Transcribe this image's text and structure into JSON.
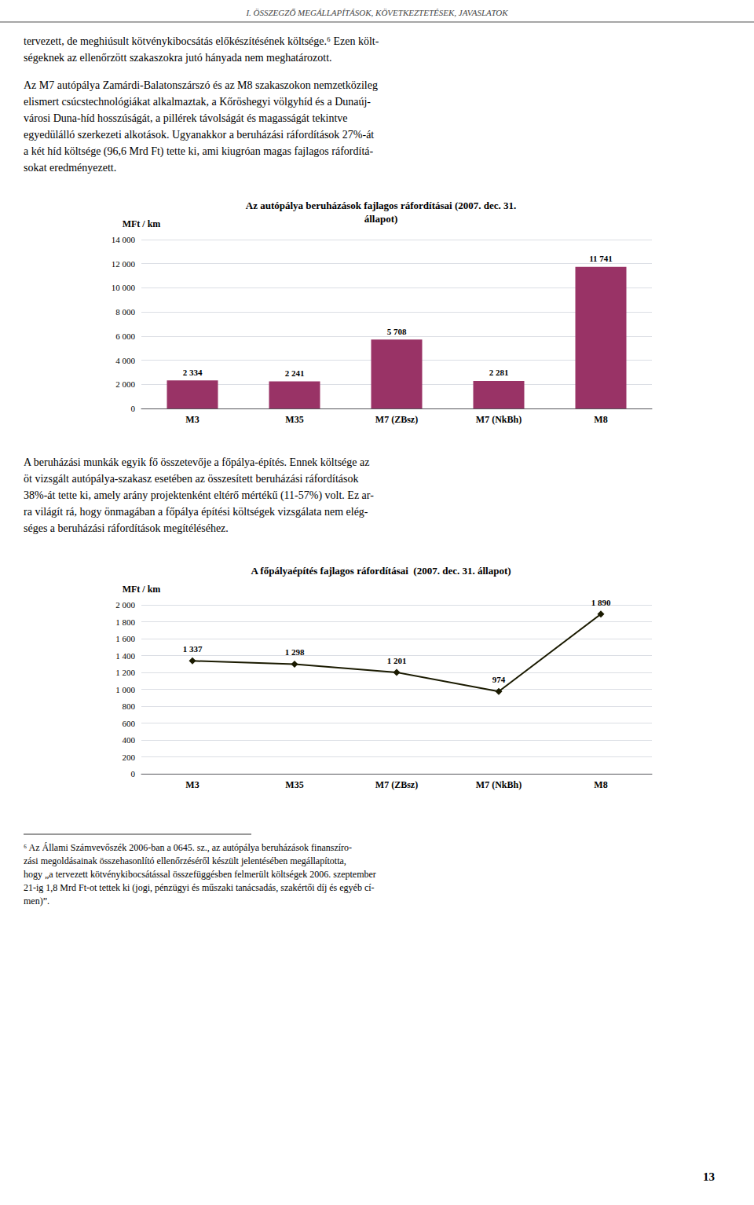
{
  "page_title": "I. ÖSSZEGZŐ MEGÁLLAPÍTÁSOK, KÖVETKEZTETÉSEK, JAVASLATOK",
  "body_text_1": "tervezett, de meghiúsult kötvénykibocsátás előkészítésének költsége.⁶ Ezen költ-\nségeknek az ellenőrzött szakaszokra jutó hányada nem meghatározott.",
  "body_text_2": "Az M7 autópálya Zamárdi-Balatonszárszó és az M8 szakaszokon nemzetközileg\nelismert csúcstechnológiákat alkalmaztak, a Kőröshegyi völgyhíd és a Dunaúj-\nvárosi Duna-híd hosszúságát, a pillérek távolságát és magasságát tekintve\negyedülálló szerkezeti alkotások. Ugyanakkor a beruházási ráfordítások 27%-át\na két híd költsége (96,6 Mrd Ft) tette ki, ami kiugróan magas fajlagos ráfordítá-\nsokat eredményezett.",
  "body_text_3": "A beruházási munkák egyik fő összetevője a főpálya-építés. Ennek költsége az\nöt vizsgált autópálya-szakasz esetében az összesített beruházási ráfordítások\n38%-át tette ki, amely arány projektenként eltérő mértékű (11-57%) volt. Ez ar-\nra világít rá, hogy önmagában a főpálya építési költségek vizsgálata nem elég-\nséges a beruházási ráfordítások megítéléséhez.",
  "footnote": [
    "⁶ Az Állami Számvevőszék 2006-ban a 0645. sz., az autópálya beruházások finanszíro-",
    "zási megoldásainak összehasonlító ellenőrzéséről készült jelentésében megállapította,",
    "hogy „a tervezett kötvénykibocsátással összefüggésben felmerült költségek 2006. szeptember",
    "21-ig 1,8 Mrd Ft-ot tettek ki (jogi, pénzügyi és műszaki tanácsadás, szakértői díj és egyéb cí-",
    "men)”."
  ],
  "page_number": "13",
  "chart_data": [
    {
      "type": "bar",
      "title": "Az autópálya beruházások fajlagos ráfordításai (2007. dec. 31.\nállapot)",
      "ylabel": "MFt / km",
      "categories": [
        "M3",
        "M35",
        "M7 (ZBsz)",
        "M7 (NkBh)",
        "M8"
      ],
      "values": [
        2334,
        2241,
        5708,
        2281,
        11741
      ],
      "value_labels": [
        "2 334",
        "2 241",
        "5 708",
        "2 281",
        "11 741"
      ],
      "color": "#993366",
      "ylim": [
        0,
        14000
      ],
      "yticks": [
        0,
        {
          "value": 2000,
          "label": "2 000"
        },
        {
          "value": 4000,
          "label": "4 000"
        },
        {
          "value": 6000,
          "label": "6 000"
        },
        {
          "value": 8000,
          "label": "8 000"
        },
        {
          "value": 10000,
          "label": "10 000"
        },
        {
          "value": 12000,
          "label": "12 000"
        },
        {
          "value": 14000,
          "label": "14 000"
        }
      ],
      "grid": true,
      "data_labels": true
    },
    {
      "type": "line",
      "title": "A főpályaépítés fajlagos ráfordításai  (2007. dec. 31. állapot)",
      "ylabel": "MFt / km",
      "categories": [
        "M3",
        "M35",
        "M7 (ZBsz)",
        "M7 (NkBh)",
        "M8"
      ],
      "values": [
        1337,
        1298,
        1201,
        974,
        1890
      ],
      "value_labels": [
        "1 337",
        "1 298",
        "1 201",
        "974",
        "1 890"
      ],
      "color": "#1a1a00",
      "marker": "diamond",
      "ylim": [
        0,
        2000
      ],
      "yticks": [
        0,
        200,
        400,
        600,
        800,
        {
          "value": 1000,
          "label": "1 000"
        },
        {
          "value": 1200,
          "label": "1 200"
        },
        {
          "value": 1400,
          "label": "1 400"
        },
        {
          "value": 1600,
          "label": "1 600"
        },
        {
          "value": 1800,
          "label": "1 800"
        },
        {
          "value": 2000,
          "label": "2 000"
        }
      ],
      "grid": true,
      "data_labels": true
    }
  ]
}
